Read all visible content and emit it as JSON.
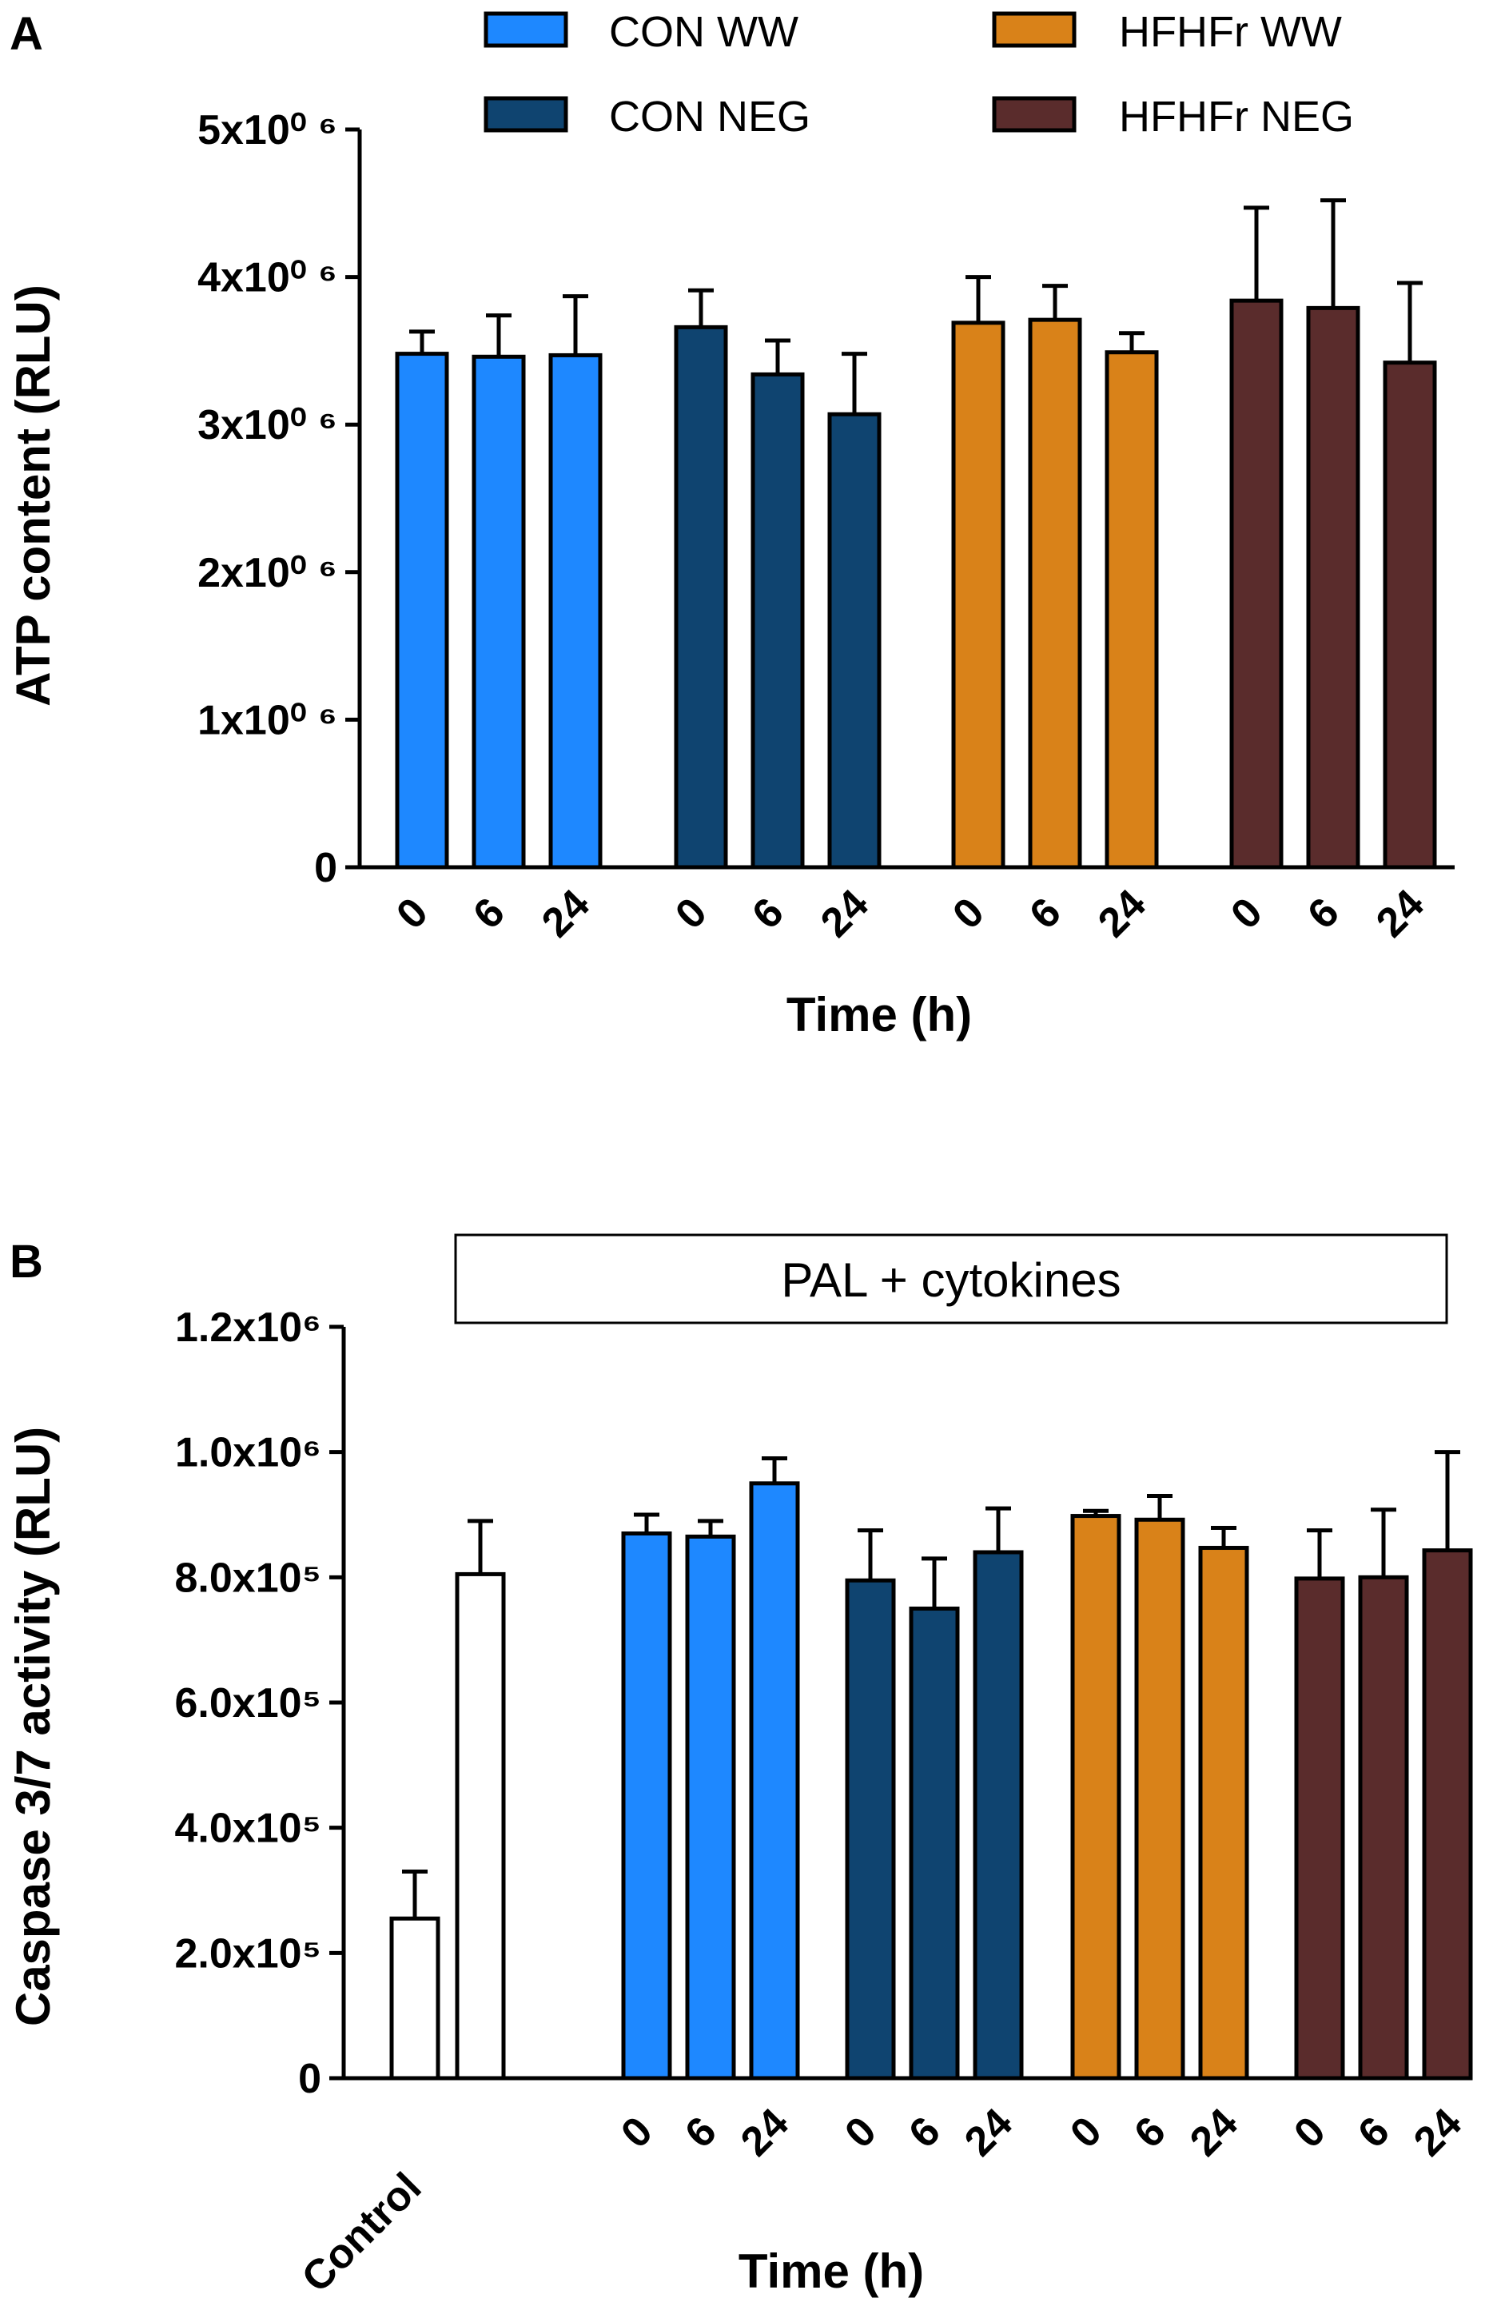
{
  "colors": {
    "con_ww": "#1e88ff",
    "con_neg": "#0f4470",
    "hfhfr_ww": "#d98219",
    "hfhfr_neg": "#5a2c2c",
    "control": "#ffffff",
    "axis": "#000000"
  },
  "legend": [
    {
      "label": "CON WW",
      "color_key": "con_ww"
    },
    {
      "label": "CON NEG",
      "color_key": "con_neg"
    },
    {
      "label": "HFHFr WW",
      "color_key": "hfhfr_ww"
    },
    {
      "label": "HFHFr NEG",
      "color_key": "hfhfr_neg"
    }
  ],
  "chart_data": [
    {
      "panel": "A",
      "type": "bar",
      "title": "",
      "xlabel": "Time (h)",
      "ylabel": "ATP content (RLU)",
      "ylim": [
        0,
        5000000
      ],
      "yticks": [
        {
          "value": 0,
          "label": "0"
        },
        {
          "value": 1000000,
          "label": "1x10⁰ ⁶"
        },
        {
          "value": 2000000,
          "label": "2x10⁰ ⁶"
        },
        {
          "value": 3000000,
          "label": "3x10⁰ ⁶"
        },
        {
          "value": 4000000,
          "label": "4x10⁰ ⁶"
        },
        {
          "value": 5000000,
          "label": "5x10⁰ ⁶"
        }
      ],
      "groups": [
        {
          "name": "CON WW",
          "color_key": "con_ww",
          "categories": [
            "0",
            "6",
            "24"
          ],
          "values": [
            3480000,
            3460000,
            3470000
          ],
          "errors": [
            150000,
            280000,
            400000
          ]
        },
        {
          "name": "CON NEG",
          "color_key": "con_neg",
          "categories": [
            "0",
            "6",
            "24"
          ],
          "values": [
            3660000,
            3340000,
            3070000
          ],
          "errors": [
            250000,
            230000,
            410000
          ]
        },
        {
          "name": "HFHFr WW",
          "color_key": "hfhfr_ww",
          "categories": [
            "0",
            "6",
            "24"
          ],
          "values": [
            3690000,
            3710000,
            3490000
          ],
          "errors": [
            310000,
            230000,
            130000
          ]
        },
        {
          "name": "HFHFr NEG",
          "color_key": "hfhfr_neg",
          "categories": [
            "0",
            "6",
            "24"
          ],
          "values": [
            3840000,
            3790000,
            3420000
          ],
          "errors": [
            630000,
            730000,
            540000
          ]
        }
      ]
    },
    {
      "panel": "B",
      "type": "bar",
      "title": "",
      "box_label": "PAL + cytokines",
      "xlabel": "Time (h)",
      "ylabel": "Caspase 3/7 activity (RLU)",
      "ylim": [
        0,
        1200000
      ],
      "yticks": [
        {
          "value": 0,
          "label": "0"
        },
        {
          "value": 200000,
          "label": "2.0x10⁵"
        },
        {
          "value": 400000,
          "label": "4.0x10⁵"
        },
        {
          "value": 600000,
          "label": "6.0x10⁵"
        },
        {
          "value": 800000,
          "label": "8.0x10⁵"
        },
        {
          "value": 1000000,
          "label": "1.0x10⁶"
        },
        {
          "value": 1200000,
          "label": "1.2x10⁶"
        }
      ],
      "control": {
        "label": "Control",
        "color_key": "control",
        "values": [
          255000,
          805000
        ],
        "errors": [
          75000,
          85000
        ]
      },
      "groups": [
        {
          "name": "CON WW",
          "color_key": "con_ww",
          "categories": [
            "0",
            "6",
            "24"
          ],
          "values": [
            870000,
            865000,
            950000
          ],
          "errors": [
            30000,
            25000,
            40000
          ]
        },
        {
          "name": "CON NEG",
          "color_key": "con_neg",
          "categories": [
            "0",
            "6",
            "24"
          ],
          "values": [
            795000,
            750000,
            840000
          ],
          "errors": [
            80000,
            80000,
            70000
          ]
        },
        {
          "name": "HFHFr WW",
          "color_key": "hfhfr_ww",
          "categories": [
            "0",
            "6",
            "24"
          ],
          "values": [
            898000,
            892000,
            847000
          ],
          "errors": [
            8000,
            38000,
            32000
          ]
        },
        {
          "name": "HFHFr NEG",
          "color_key": "hfhfr_neg",
          "categories": [
            "0",
            "6",
            "24"
          ],
          "values": [
            798000,
            800000,
            843000
          ],
          "errors": [
            77000,
            108000,
            157000
          ]
        }
      ]
    }
  ]
}
